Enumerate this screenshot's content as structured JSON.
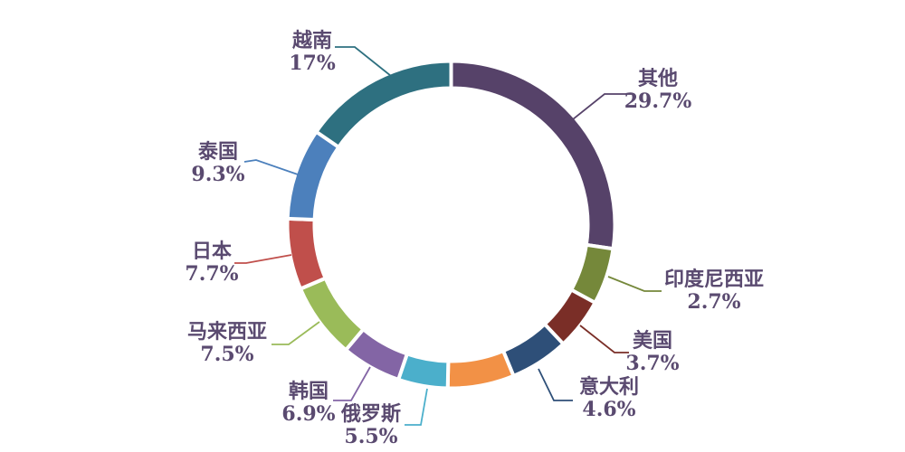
{
  "chart_data": {
    "type": "donut",
    "title": "",
    "unit": "%",
    "legend": "none",
    "background_color": "#FFFFFF",
    "label_text_color": "#5A4A70",
    "slices": [
      {
        "name": "其他",
        "percent_label": "29.7%",
        "value": 29.7,
        "color": "#564269",
        "arc_start_deg": 0,
        "arc_end_deg": 98.5
      },
      {
        "name": "印度尼西亚",
        "percent_label": "2.7%",
        "value": 2.7,
        "color": "#75883A",
        "arc_start_deg": 98.5,
        "arc_end_deg": 118.5
      },
      {
        "name": "美国",
        "percent_label": "3.7%",
        "value": 3.7,
        "color": "#7A2E27",
        "arc_start_deg": 118.5,
        "arc_end_deg": 136.8
      },
      {
        "name": "意大利",
        "percent_label": "4.6%",
        "value": 4.6,
        "color": "#2E4F78",
        "arc_start_deg": 136.8,
        "arc_end_deg": 157.6
      },
      {
        "name": "",
        "percent_label": "",
        "value": null,
        "color": "#F29146",
        "arc_start_deg": 157.6,
        "arc_end_deg": 181.2
      },
      {
        "name": "俄罗斯",
        "percent_label": "5.5%",
        "value": 5.5,
        "color": "#4BAFCB",
        "arc_start_deg": 181.2,
        "arc_end_deg": 198.8
      },
      {
        "name": "韩国",
        "percent_label": "6.9%",
        "value": 6.9,
        "color": "#8365A5",
        "arc_start_deg": 198.8,
        "arc_end_deg": 220.0
      },
      {
        "name": "马来西亚",
        "percent_label": "7.5%",
        "value": 7.5,
        "color": "#9ABB59",
        "arc_start_deg": 220.0,
        "arc_end_deg": 246.9
      },
      {
        "name": "日本",
        "percent_label": "7.7%",
        "value": 7.7,
        "color": "#C04F4B",
        "arc_start_deg": 246.9,
        "arc_end_deg": 272.1
      },
      {
        "name": "泰国",
        "percent_label": "9.3%",
        "value": 9.3,
        "color": "#4C80BC",
        "arc_start_deg": 272.1,
        "arc_end_deg": 304.6
      },
      {
        "name": "越南",
        "percent_label": "17%",
        "value": 17,
        "color": "#2E7080",
        "arc_start_deg": 304.6,
        "arc_end_deg": 360
      }
    ]
  }
}
